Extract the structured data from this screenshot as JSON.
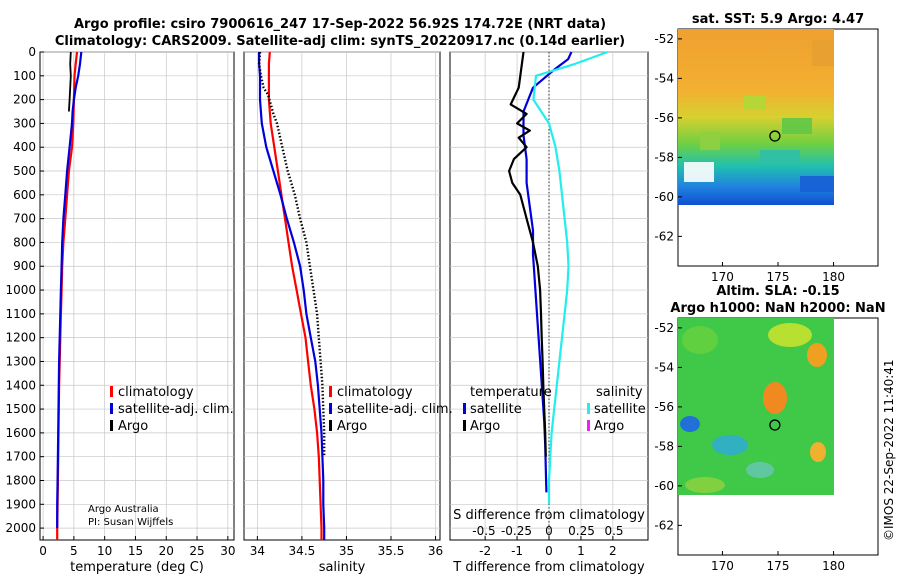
{
  "header": {
    "title_line1": "Argo profile: csiro 7900616_247 17-Sep-2022 56.92S 174.72E (NRT data)",
    "title_line2": "Climatology: CARS2009. Satellite-adj clim: synTS_20220917.nc (0.14d earlier)",
    "credit_line1": "Argo Australia",
    "credit_line2": "PI: Susan Wijffels",
    "watermark": "©IMOS 22-Sep-2022 11:40:41"
  },
  "colors": {
    "climatology": "#ff0000",
    "satellite": "#0000dd",
    "argo": "#000000",
    "salinity_satellite": "#22eeee",
    "salinity_argo": "#ee22ee",
    "grid": "#c8c8c8"
  },
  "chart_data": [
    {
      "type": "line",
      "id": "temperature",
      "xlabel": "temperature (deg C)",
      "ylabel": "",
      "xlim": [
        -0.5,
        31
      ],
      "ylim": [
        0,
        2050
      ],
      "y_reversed": true,
      "xticks": [
        0,
        5,
        10,
        15,
        20,
        25,
        30
      ],
      "yticks": [
        0,
        100,
        200,
        300,
        400,
        500,
        600,
        700,
        800,
        900,
        1000,
        1100,
        1200,
        1300,
        1400,
        1500,
        1600,
        1700,
        1800,
        1900,
        2000
      ],
      "grid": true,
      "legend": {
        "position": "lower-right",
        "entries": [
          "climatology",
          "satellite-adj. clim.",
          "Argo"
        ]
      },
      "series": [
        {
          "name": "climatology",
          "color": "#ff0000",
          "width": 2.2,
          "x": [
            5.5,
            5.3,
            5.1,
            5.0,
            4.9,
            4.7,
            4.2,
            3.9,
            3.6,
            3.3,
            3.1,
            3.0,
            2.9,
            2.8,
            2.7,
            2.6,
            2.55,
            2.5,
            2.45,
            2.4,
            2.35,
            2.3,
            2.3
          ],
          "y": [
            0,
            50,
            100,
            200,
            300,
            400,
            500,
            600,
            700,
            800,
            900,
            1000,
            1100,
            1200,
            1300,
            1400,
            1500,
            1600,
            1700,
            1800,
            1900,
            2000,
            2050
          ]
        },
        {
          "name": "satellite-adj. clim.",
          "color": "#0000dd",
          "width": 2.2,
          "x": [
            6.2,
            6.0,
            5.7,
            5.3,
            5.0,
            4.8,
            4.7,
            4.3,
            3.9,
            3.6,
            3.3,
            3.1,
            3.0,
            2.9,
            2.8,
            2.7,
            2.6,
            2.55,
            2.5,
            2.45,
            2.4,
            2.35,
            2.3,
            2.3
          ],
          "y": [
            0,
            50,
            100,
            150,
            200,
            250,
            300,
            400,
            500,
            600,
            700,
            800,
            900,
            1000,
            1100,
            1200,
            1300,
            1400,
            1500,
            1600,
            1700,
            1800,
            1900,
            2000
          ]
        },
        {
          "name": "Argo",
          "color": "#000000",
          "width": 1.8,
          "x": [
            4.5,
            4.4,
            4.5,
            4.3,
            4.2
          ],
          "y": [
            0,
            50,
            100,
            200,
            250
          ]
        }
      ]
    },
    {
      "type": "line",
      "id": "salinity",
      "xlabel": "salinity",
      "ylabel": "",
      "xlim": [
        33.85,
        36.05
      ],
      "ylim": [
        0,
        2050
      ],
      "y_reversed": true,
      "xticks": [
        34,
        34.5,
        35,
        35.5,
        36
      ],
      "xticklabels": [
        "34",
        "34.5",
        "35",
        "35.5",
        "36"
      ],
      "grid": true,
      "legend": {
        "position": "lower-right",
        "entries": [
          "climatology",
          "satellite-adj. clim.",
          "Argo"
        ]
      },
      "series": [
        {
          "name": "climatology",
          "color": "#ff0000",
          "width": 2.2,
          "x": [
            34.14,
            34.13,
            34.13,
            34.13,
            34.15,
            34.19,
            34.23,
            34.27,
            34.31,
            34.35,
            34.39,
            34.44,
            34.49,
            34.54,
            34.57,
            34.6,
            34.64,
            34.67,
            34.69,
            34.7,
            34.71,
            34.72,
            34.72
          ],
          "y": [
            0,
            50,
            100,
            200,
            300,
            400,
            500,
            600,
            700,
            800,
            900,
            1000,
            1100,
            1200,
            1300,
            1400,
            1500,
            1600,
            1700,
            1800,
            1900,
            2000,
            2050
          ]
        },
        {
          "name": "satellite-adj. clim.",
          "color": "#0000dd",
          "width": 2.2,
          "x": [
            34.02,
            34.02,
            34.03,
            34.03,
            34.05,
            34.1,
            34.18,
            34.26,
            34.33,
            34.41,
            34.48,
            34.52,
            34.55,
            34.6,
            34.65,
            34.68,
            34.7,
            34.72,
            34.73,
            34.74,
            34.74,
            34.75,
            34.75
          ],
          "y": [
            0,
            50,
            100,
            200,
            300,
            400,
            500,
            600,
            700,
            800,
            900,
            1000,
            1100,
            1200,
            1300,
            1400,
            1500,
            1600,
            1700,
            1800,
            1900,
            2000,
            2050
          ]
        },
        {
          "name": "Argo",
          "color": "#000000",
          "width": 2.4,
          "dotted": true,
          "x": [
            34.03,
            34.02,
            34.04,
            34.07,
            34.12,
            34.18,
            34.22,
            34.28,
            34.34,
            34.42,
            34.48,
            34.55,
            34.59,
            34.63,
            34.67,
            34.69,
            34.71,
            34.73,
            34.74,
            34.75,
            34.75
          ],
          "y": [
            0,
            50,
            100,
            150,
            180,
            260,
            300,
            400,
            500,
            600,
            700,
            800,
            900,
            1000,
            1100,
            1200,
            1300,
            1400,
            1500,
            1600,
            1700
          ]
        }
      ]
    },
    {
      "type": "line",
      "id": "difference",
      "xlabel": "T difference from climatology",
      "x2label": "S difference from climatology",
      "ylabel": "",
      "xlim": [
        -3.1,
        3.1
      ],
      "ylim": [
        0,
        2050
      ],
      "y_reversed": true,
      "xticks": [
        -2,
        -1,
        0,
        1,
        2
      ],
      "x2ticks": [
        -0.5,
        -0.25,
        0,
        0.25,
        0.5
      ],
      "x2ticklabels": [
        "-0.5",
        "-0.25",
        "0",
        "0.25",
        "0.5"
      ],
      "zero_line": true,
      "grid": true,
      "legend": {
        "position": "lower",
        "temperature_title": "temperature",
        "salinity_title": "salinity",
        "temperature_entries": [
          "satellite",
          "Argo"
        ],
        "salinity_entries": [
          "satellite",
          "Argo"
        ]
      },
      "series": [
        {
          "name": "T satellite",
          "color": "#0000dd",
          "width": 2.2,
          "x": [
            0.7,
            0.6,
            0.2,
            -0.5,
            -0.8,
            -0.8,
            -0.7,
            -0.7,
            -0.6,
            -0.5,
            -0.5,
            -0.45,
            -0.4,
            -0.35,
            -0.3,
            -0.25,
            -0.2,
            -0.15,
            -0.12,
            -0.1,
            -0.08
          ],
          "y": [
            0,
            30,
            70,
            150,
            250,
            350,
            450,
            550,
            650,
            750,
            850,
            950,
            1050,
            1150,
            1250,
            1350,
            1450,
            1550,
            1650,
            1750,
            1850
          ]
        },
        {
          "name": "T Argo",
          "color": "#000000",
          "width": 2.2,
          "x": [
            -0.8,
            -0.85,
            -0.9,
            -0.95,
            -1.2,
            -0.7,
            -1.0,
            -0.6,
            -0.95,
            -0.7,
            -1.1,
            -1.25,
            -1.15,
            -0.9,
            -0.7,
            -0.5,
            -0.35,
            -0.28,
            -0.25,
            -0.23,
            -0.2,
            -0.18,
            -0.15,
            -0.12,
            -0.1
          ],
          "y": [
            0,
            50,
            100,
            150,
            220,
            260,
            300,
            330,
            360,
            400,
            450,
            500,
            550,
            600,
            700,
            800,
            900,
            1000,
            1100,
            1200,
            1300,
            1400,
            1500,
            1600,
            1700
          ]
        },
        {
          "name": "S satellite",
          "color": "#22eeee",
          "width": 2.2,
          "x": [
            0.45,
            0.2,
            -0.1,
            -0.12,
            0.0,
            0.05,
            0.08,
            0.1,
            0.12,
            0.14,
            0.15,
            0.14,
            0.12,
            0.1,
            0.08,
            0.06,
            0.04,
            0.02,
            0.01,
            0.0,
            0.0
          ],
          "y": [
            0,
            50,
            100,
            200,
            300,
            400,
            500,
            600,
            700,
            800,
            900,
            1000,
            1100,
            1200,
            1300,
            1400,
            1500,
            1600,
            1700,
            1800,
            1900
          ],
          "axis": "salinity"
        }
      ]
    }
  ],
  "maps": [
    {
      "id": "sst-map",
      "title": "sat. SST: 5.9 Argo: 4.47",
      "xticks": [
        170,
        175,
        180
      ],
      "yticks": [
        -52,
        -54,
        -56,
        -58,
        -60,
        -62
      ],
      "xlim": [
        166,
        184
      ],
      "ylim": [
        -63.5,
        -51.5
      ],
      "data_lon": [
        166,
        180
      ],
      "data_lat": [
        -60,
        -51.5
      ],
      "float_lon": 174.72,
      "float_lat": -56.92
    },
    {
      "id": "sla-map",
      "title_line1": "Altim. SLA: -0.15",
      "title_line2": "Argo h1000: NaN h2000: NaN",
      "xticks": [
        170,
        175,
        180
      ],
      "yticks": [
        -52,
        -54,
        -56,
        -58,
        -60,
        -62
      ],
      "xlim": [
        166,
        184
      ],
      "ylim": [
        -63.5,
        -51.5
      ],
      "data_lon": [
        166,
        180
      ],
      "data_lat": [
        -60,
        -51.5
      ],
      "float_lon": 174.72,
      "float_lat": -56.92
    }
  ]
}
